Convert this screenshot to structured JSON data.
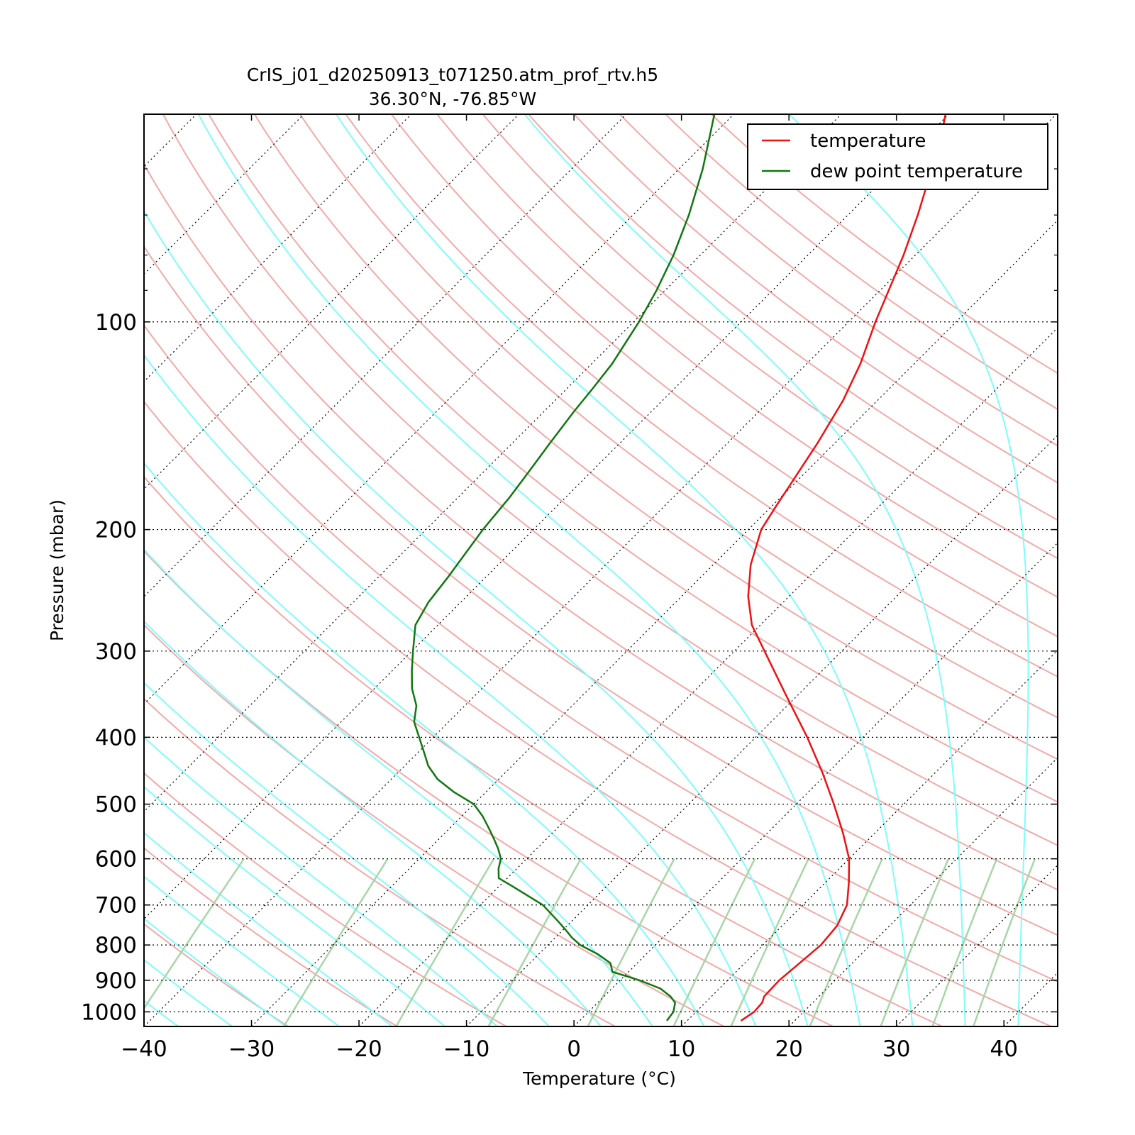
{
  "chart_data": {
    "type": "line",
    "subtype": "skew-t log-p",
    "title": "CrIS_j01_d20250913_t071250.atm_prof_rtv.h5",
    "subtitle": "36.30°N, -76.85°W",
    "xlabel": "Temperature (°C)",
    "ylabel": "Pressure (mbar)",
    "xlim": [
      -40,
      45
    ],
    "ylim": [
      1050,
      50
    ],
    "y_scale": "log",
    "skew_degrees": 45,
    "x_ticks": [
      -40,
      -30,
      -20,
      -10,
      0,
      10,
      20,
      30,
      40
    ],
    "x_tick_labels": [
      "−40",
      "−30",
      "−20",
      "−10",
      "0",
      "10",
      "20",
      "30",
      "40"
    ],
    "y_ticks": [
      100,
      200,
      300,
      400,
      500,
      600,
      700,
      800,
      900,
      1000
    ],
    "y_tick_labels": [
      "100",
      "200",
      "300",
      "400",
      "500",
      "600",
      "700",
      "800",
      "900",
      "1000"
    ],
    "isobar_grid": true,
    "isotherm_grid": true,
    "legend_position": "top-right",
    "colors": {
      "temperature": "#ee1111",
      "dewpoint": "#117711",
      "dry_adiabat": "#f6a8a8",
      "moist_adiabat": "#7ffcfc",
      "mixing_ratio": "#a8d6a8",
      "isotherm": "#000000",
      "isobar": "#000000"
    },
    "series": [
      {
        "name": "temperature",
        "color": "#ee1111",
        "points": [
          [
            1030,
            15.0
          ],
          [
            1000,
            15.4
          ],
          [
            970,
            15.3
          ],
          [
            950,
            14.9
          ],
          [
            900,
            14.8
          ],
          [
            850,
            15.1
          ],
          [
            800,
            15.4
          ],
          [
            750,
            15.1
          ],
          [
            700,
            14.1
          ],
          [
            650,
            12.2
          ],
          [
            600,
            10.0
          ],
          [
            550,
            7.0
          ],
          [
            500,
            3.5
          ],
          [
            450,
            -0.5
          ],
          [
            400,
            -5.2
          ],
          [
            350,
            -10.8
          ],
          [
            300,
            -17.2
          ],
          [
            275,
            -20.8
          ],
          [
            250,
            -23.8
          ],
          [
            225,
            -26.5
          ],
          [
            200,
            -28.8
          ],
          [
            185,
            -29.6
          ],
          [
            170,
            -30.4
          ],
          [
            150,
            -31.6
          ],
          [
            130,
            -33.2
          ],
          [
            115,
            -35.0
          ],
          [
            100,
            -37.5
          ],
          [
            90,
            -39.2
          ],
          [
            80,
            -41.1
          ],
          [
            70,
            -43.5
          ],
          [
            60,
            -46.5
          ],
          [
            53,
            -49.0
          ],
          [
            50,
            -50.3
          ]
        ]
      },
      {
        "name": "dew point temperature",
        "color": "#117711",
        "points": [
          [
            1030,
            8.1
          ],
          [
            1000,
            7.9
          ],
          [
            970,
            7.2
          ],
          [
            950,
            6.2
          ],
          [
            925,
            4.5
          ],
          [
            900,
            1.8
          ],
          [
            875,
            -1.5
          ],
          [
            850,
            -2.5
          ],
          [
            825,
            -4.5
          ],
          [
            800,
            -7.0
          ],
          [
            780,
            -8.5
          ],
          [
            760,
            -9.8
          ],
          [
            740,
            -11.2
          ],
          [
            700,
            -14.2
          ],
          [
            660,
            -18.5
          ],
          [
            640,
            -20.8
          ],
          [
            620,
            -21.7
          ],
          [
            600,
            -22.4
          ],
          [
            580,
            -23.6
          ],
          [
            560,
            -25.0
          ],
          [
            540,
            -26.5
          ],
          [
            520,
            -28.1
          ],
          [
            500,
            -30.0
          ],
          [
            480,
            -33.0
          ],
          [
            460,
            -35.7
          ],
          [
            440,
            -37.8
          ],
          [
            420,
            -39.5
          ],
          [
            400,
            -41.3
          ],
          [
            380,
            -43.2
          ],
          [
            360,
            -44.5
          ],
          [
            340,
            -46.5
          ],
          [
            320,
            -48.2
          ],
          [
            300,
            -49.9
          ],
          [
            275,
            -52.1
          ],
          [
            255,
            -53.0
          ],
          [
            235,
            -53.5
          ],
          [
            200,
            -54.7
          ],
          [
            180,
            -55.2
          ],
          [
            165,
            -55.8
          ],
          [
            150,
            -56.5
          ],
          [
            135,
            -57.2
          ],
          [
            125,
            -57.6
          ],
          [
            115,
            -58.1
          ],
          [
            100,
            -59.5
          ],
          [
            90,
            -60.8
          ],
          [
            80,
            -62.5
          ],
          [
            70,
            -64.8
          ],
          [
            60,
            -67.8
          ],
          [
            50,
            -71.8
          ]
        ]
      }
    ],
    "legend": {
      "entries": [
        "temperature",
        "dew point temperature"
      ]
    }
  }
}
